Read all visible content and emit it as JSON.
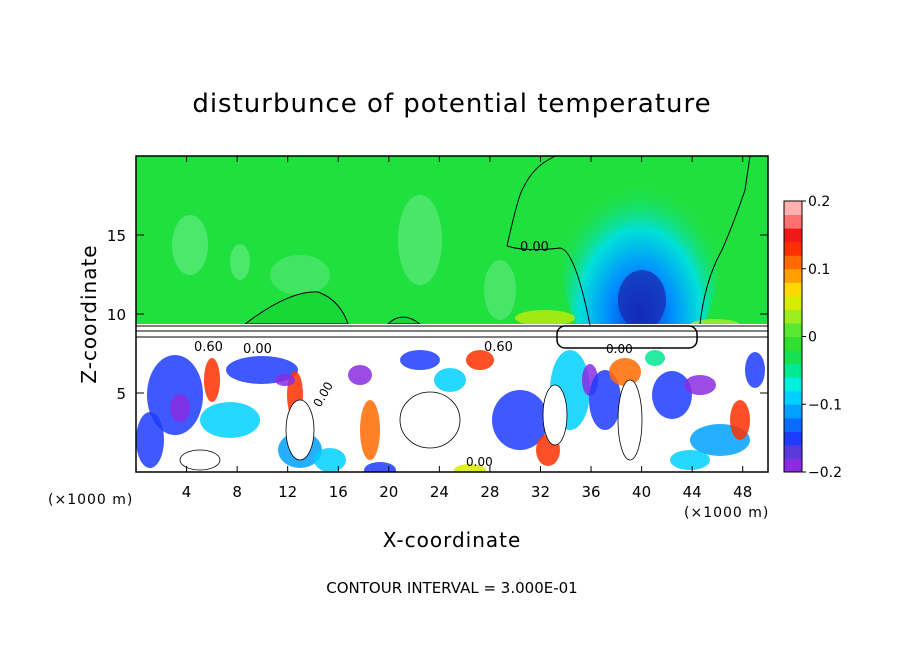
{
  "chart_data": {
    "type": "heatmap",
    "title": "disturbunce of potential temperature",
    "xlabel": "X-coordinate",
    "ylabel": "Z-coordinate",
    "x_unit": "(×1000 m)",
    "y_unit": "(×1000 m)",
    "xlim": [
      0,
      50
    ],
    "ylim": [
      0,
      20
    ],
    "x_ticks": [
      4,
      8,
      12,
      16,
      20,
      24,
      28,
      32,
      36,
      40,
      44,
      48
    ],
    "x_tick_labels": [
      "4",
      "8",
      "12",
      "16",
      "20",
      "24",
      "28",
      "32",
      "36",
      "40",
      "44",
      "48"
    ],
    "y_ticks": [
      5,
      10,
      15
    ],
    "y_tick_labels": [
      "5",
      "10",
      "15"
    ],
    "colorbar": {
      "range": [
        -0.2,
        0.2
      ],
      "tick_values": [
        0.2,
        0.1,
        0,
        -0.1,
        -0.2
      ],
      "tick_labels": [
        "0.2",
        "0.1",
        "0",
        "−0.1",
        "−0.2"
      ],
      "colors": [
        "#8a2be2",
        "#5a3ad8",
        "#1e3cff",
        "#0a6cff",
        "#00a0ff",
        "#00d0ff",
        "#00f0e0",
        "#00e890",
        "#18e050",
        "#30e030",
        "#58e830",
        "#9cec20",
        "#d8ec00",
        "#ffd800",
        "#ffa000",
        "#ff6a00",
        "#ff3000",
        "#f01818",
        "#ff7070",
        "#ffb0b0"
      ]
    },
    "field_colors": {
      "background": "#20e040",
      "light": "#58e878",
      "warm": "#c0ec28",
      "white": "#ffffff"
    },
    "contour_labels": [
      "0.00",
      "0.60",
      "0.00",
      "0.60",
      "0.00",
      "0.00",
      "0.00"
    ],
    "footer": "CONTOUR INTERVAL = 3.000E-01"
  }
}
